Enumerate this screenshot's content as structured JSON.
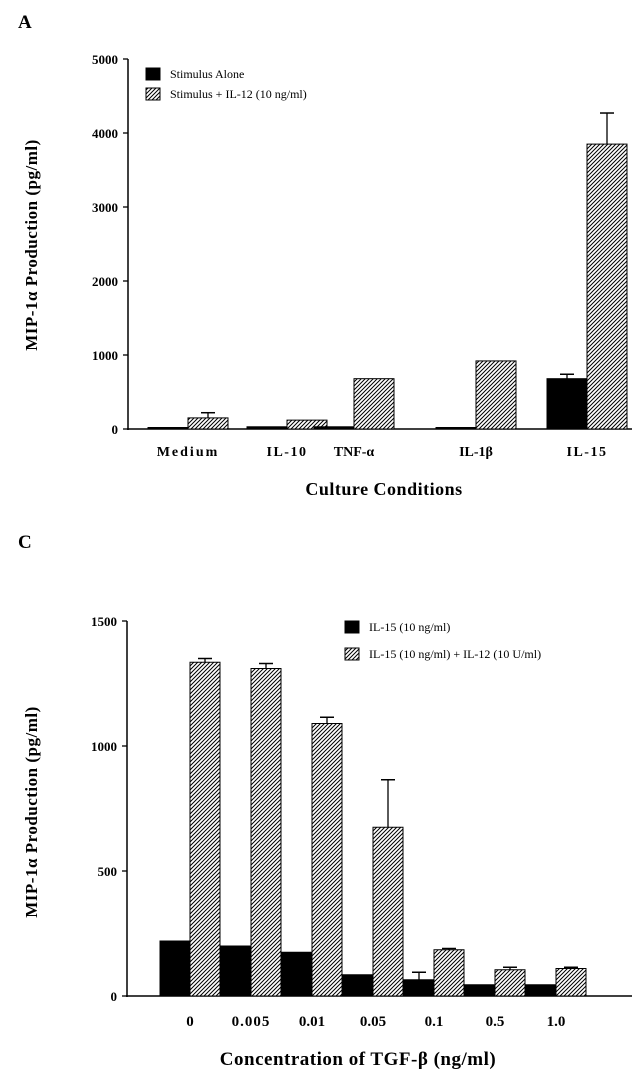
{
  "panels": [
    {
      "label": "A",
      "ylabel": "MIP-1α  Production  (pg/ml)",
      "xlabel": "Culture   Conditions",
      "yticks": [
        "0",
        "1000",
        "2000",
        "3000",
        "4000",
        "5000"
      ],
      "legend": [
        "Stimulus Alone",
        "Stimulus + IL-12 (10 ng/ml)"
      ]
    },
    {
      "label": "C",
      "ylabel": "MIP-1α  Production  (pg/ml)",
      "xlabel": "Concentration  of  TGF-β  (ng/ml)",
      "yticks": [
        "0",
        "500",
        "1000",
        "1500"
      ],
      "legend": [
        "IL-15 (10 ng/ml)",
        "IL-15 (10 ng/ml) + IL-12 (10 U/ml)"
      ]
    }
  ],
  "chart_data": [
    {
      "type": "bar",
      "title": "A",
      "xlabel": "Culture   Conditions",
      "ylabel": "MIP-1α  Production  (pg/ml)",
      "ylim": [
        0,
        5000
      ],
      "categories": [
        "Medium",
        "IL-10",
        "TNF-α",
        "IL-1β",
        "IL-15"
      ],
      "series": [
        {
          "name": "Stimulus Alone",
          "fill": "solid",
          "values": [
            10,
            30,
            30,
            10,
            680
          ],
          "errors": [
            0,
            0,
            0,
            0,
            60
          ]
        },
        {
          "name": "Stimulus + IL-12 (10 ng/ml)",
          "fill": "hatched",
          "values": [
            150,
            120,
            680,
            920,
            3850
          ],
          "errors": [
            70,
            0,
            0,
            0,
            420
          ]
        }
      ]
    },
    {
      "type": "bar",
      "title": "C",
      "xlabel": "Concentration  of  TGF-β  (ng/ml)",
      "ylabel": "MIP-1α  Production  (pg/ml)",
      "ylim": [
        0,
        1500
      ],
      "categories": [
        "0",
        "0.005",
        "0.01",
        "0.05",
        "0.1",
        "0.5",
        "1.0"
      ],
      "series": [
        {
          "name": "IL-15 (10 ng/ml)",
          "fill": "solid",
          "values": [
            220,
            200,
            175,
            85,
            65,
            45,
            45
          ],
          "errors": [
            0,
            0,
            0,
            0,
            30,
            0,
            0
          ]
        },
        {
          "name": "IL-15 (10 ng/ml) + IL-12 (10 U/ml)",
          "fill": "hatched",
          "values": [
            1335,
            1310,
            1090,
            675,
            185,
            105,
            110
          ],
          "errors": [
            15,
            20,
            25,
            190,
            5,
            10,
            5
          ]
        }
      ]
    }
  ]
}
